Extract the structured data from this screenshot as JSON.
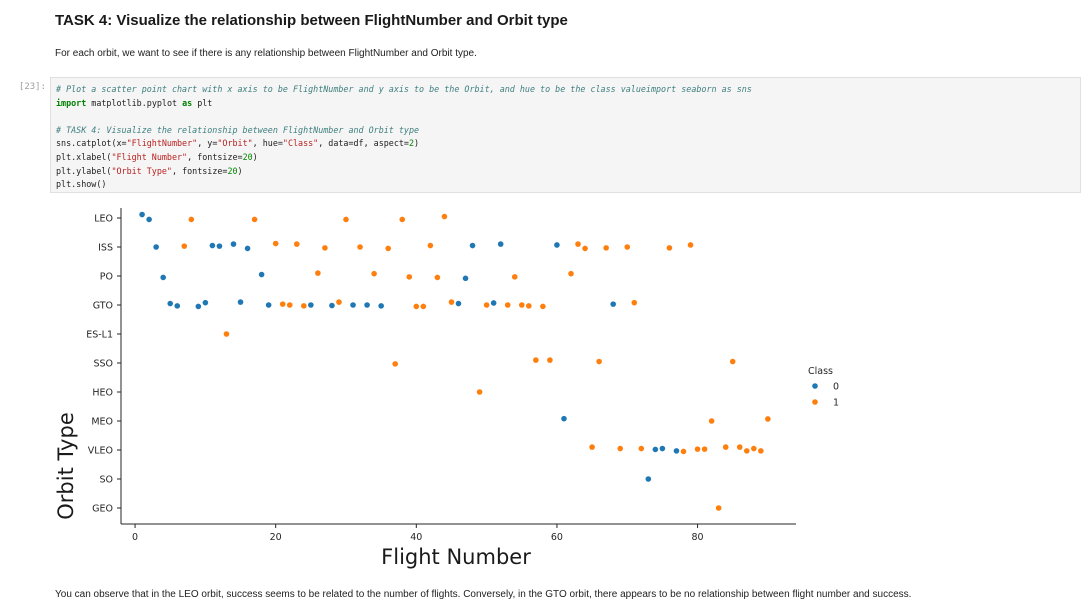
{
  "markdown": {
    "heading": "TASK 4: Visualize the relationship between FlightNumber and Orbit type",
    "paragraph": "For each orbit, we want to see if there is any relationship between FlightNumber and Orbit type.",
    "conclusion": "You can observe that in the LEO orbit, success seems to be related to the number of flights. Conversely, in the GTO orbit, there appears to be no relationship between flight number and success."
  },
  "code_cell": {
    "prompt": "[23]:",
    "lines": [
      {
        "parts": [
          {
            "t": "comment",
            "v": "# Plot a scatter point chart with x axis to be FlightNumber and y axis to be the Orbit, and hue to be the class valueimport seaborn as sns"
          }
        ]
      },
      {
        "parts": [
          {
            "t": "kw",
            "v": "import"
          },
          {
            "t": "plain",
            "v": " matplotlib.pyplot "
          },
          {
            "t": "kw",
            "v": "as"
          },
          {
            "t": "plain",
            "v": " plt"
          }
        ]
      },
      {
        "parts": []
      },
      {
        "parts": [
          {
            "t": "comment",
            "v": "# TASK 4: Visualize the relationship between FlightNumber and Orbit type"
          }
        ]
      },
      {
        "parts": [
          {
            "t": "plain",
            "v": "sns.catplot(x="
          },
          {
            "t": "str",
            "v": "\"FlightNumber\""
          },
          {
            "t": "plain",
            "v": ", y="
          },
          {
            "t": "str",
            "v": "\"Orbit\""
          },
          {
            "t": "plain",
            "v": ", hue="
          },
          {
            "t": "str",
            "v": "\"Class\""
          },
          {
            "t": "plain",
            "v": ", data=df, aspect="
          },
          {
            "t": "num",
            "v": "2"
          },
          {
            "t": "plain",
            "v": ")"
          }
        ]
      },
      {
        "parts": [
          {
            "t": "plain",
            "v": "plt.xlabel("
          },
          {
            "t": "str",
            "v": "\"Flight Number\""
          },
          {
            "t": "plain",
            "v": ", fontsize="
          },
          {
            "t": "num",
            "v": "20"
          },
          {
            "t": "plain",
            "v": ")"
          }
        ]
      },
      {
        "parts": [
          {
            "t": "plain",
            "v": "plt.ylabel("
          },
          {
            "t": "str",
            "v": "\"Orbit Type\""
          },
          {
            "t": "plain",
            "v": ", fontsize="
          },
          {
            "t": "num",
            "v": "20"
          },
          {
            "t": "plain",
            "v": ")"
          }
        ]
      },
      {
        "parts": [
          {
            "t": "plain",
            "v": "plt.show()"
          }
        ]
      }
    ]
  },
  "chart_data": {
    "type": "scatter",
    "title": "",
    "xlabel": "Flight Number",
    "ylabel": "Orbit Type",
    "xlim": [
      -2,
      94
    ],
    "xticks": [
      0,
      20,
      40,
      60,
      80
    ],
    "categories": [
      "LEO",
      "ISS",
      "PO",
      "GTO",
      "ES-L1",
      "SSO",
      "HEO",
      "MEO",
      "VLEO",
      "SO",
      "GEO"
    ],
    "legend": {
      "title": "Class",
      "position": "right"
    },
    "colors": {
      "0": "#1f77b4",
      "1": "#ff7f0e"
    },
    "series": [
      {
        "name": "0",
        "points": [
          [
            1,
            "LEO",
            -0.12
          ],
          [
            2,
            "LEO",
            0.05
          ],
          [
            3,
            "ISS",
            0
          ],
          [
            4,
            "PO",
            0.05
          ],
          [
            5,
            "GTO",
            -0.05
          ],
          [
            6,
            "GTO",
            0.03
          ],
          [
            9,
            "GTO",
            0.05
          ],
          [
            10,
            "GTO",
            -0.08
          ],
          [
            11,
            "ISS",
            -0.05
          ],
          [
            12,
            "ISS",
            -0.03
          ],
          [
            14,
            "ISS",
            -0.1
          ],
          [
            15,
            "GTO",
            -0.1
          ],
          [
            16,
            "ISS",
            0.05
          ],
          [
            18,
            "PO",
            -0.05
          ],
          [
            19,
            "GTO",
            0
          ],
          [
            25,
            "GTO",
            0
          ],
          [
            28,
            "GTO",
            0.02
          ],
          [
            31,
            "GTO",
            0
          ],
          [
            33,
            "GTO",
            0
          ],
          [
            35,
            "GTO",
            0.03
          ],
          [
            46,
            "GTO",
            -0.05
          ],
          [
            47,
            "PO",
            0.08
          ],
          [
            48,
            "ISS",
            -0.05
          ],
          [
            51,
            "GTO",
            -0.07
          ],
          [
            52,
            "ISS",
            -0.1
          ],
          [
            60,
            "ISS",
            -0.07
          ],
          [
            61,
            "MEO",
            -0.08
          ],
          [
            68,
            "GTO",
            -0.03
          ],
          [
            73,
            "SO",
            0
          ],
          [
            74,
            "VLEO",
            -0.02
          ],
          [
            75,
            "VLEO",
            -0.05
          ],
          [
            77,
            "VLEO",
            0.03
          ]
        ]
      },
      {
        "name": "1",
        "points": [
          [
            8,
            "LEO",
            0.05
          ],
          [
            7,
            "ISS",
            -0.03
          ],
          [
            13,
            "ES-L1",
            0
          ],
          [
            17,
            "LEO",
            0.05
          ],
          [
            20,
            "ISS",
            -0.12
          ],
          [
            21,
            "GTO",
            -0.03
          ],
          [
            22,
            "GTO",
            0
          ],
          [
            23,
            "ISS",
            -0.1
          ],
          [
            24,
            "GTO",
            0.03
          ],
          [
            26,
            "PO",
            -0.1
          ],
          [
            27,
            "ISS",
            0.03
          ],
          [
            29,
            "GTO",
            -0.1
          ],
          [
            30,
            "LEO",
            0.05
          ],
          [
            32,
            "ISS",
            0
          ],
          [
            34,
            "PO",
            -0.08
          ],
          [
            36,
            "ISS",
            0.05
          ],
          [
            37,
            "SSO",
            0.03
          ],
          [
            38,
            "LEO",
            0.05
          ],
          [
            39,
            "PO",
            0.03
          ],
          [
            40,
            "GTO",
            0.05
          ],
          [
            41,
            "GTO",
            0.05
          ],
          [
            42,
            "ISS",
            -0.05
          ],
          [
            43,
            "PO",
            0.05
          ],
          [
            44,
            "LEO",
            -0.05
          ],
          [
            45,
            "GTO",
            -0.1
          ],
          [
            49,
            "HEO",
            0
          ],
          [
            50,
            "GTO",
            0
          ],
          [
            53,
            "GTO",
            0
          ],
          [
            54,
            "PO",
            0.03
          ],
          [
            55,
            "GTO",
            0
          ],
          [
            56,
            "GTO",
            0.03
          ],
          [
            57,
            "SSO",
            -0.1
          ],
          [
            58,
            "GTO",
            0.05
          ],
          [
            59,
            "SSO",
            -0.1
          ],
          [
            62,
            "PO",
            -0.08
          ],
          [
            63,
            "ISS",
            -0.1
          ],
          [
            64,
            "ISS",
            0.05
          ],
          [
            65,
            "VLEO",
            -0.1
          ],
          [
            66,
            "SSO",
            -0.05
          ],
          [
            67,
            "ISS",
            0.03
          ],
          [
            69,
            "VLEO",
            -0.05
          ],
          [
            70,
            "ISS",
            0
          ],
          [
            71,
            "GTO",
            -0.08
          ],
          [
            72,
            "VLEO",
            -0.05
          ],
          [
            76,
            "ISS",
            0.03
          ],
          [
            78,
            "VLEO",
            0.05
          ],
          [
            79,
            "ISS",
            -0.07
          ],
          [
            80,
            "VLEO",
            -0.03
          ],
          [
            81,
            "VLEO",
            -0.03
          ],
          [
            82,
            "MEO",
            0
          ],
          [
            83,
            "GEO",
            0
          ],
          [
            84,
            "VLEO",
            -0.1
          ],
          [
            85,
            "SSO",
            -0.05
          ],
          [
            86,
            "VLEO",
            -0.1
          ],
          [
            87,
            "VLEO",
            0.03
          ],
          [
            88,
            "VLEO",
            -0.05
          ],
          [
            89,
            "VLEO",
            0.03
          ],
          [
            90,
            "MEO",
            -0.07
          ]
        ]
      }
    ]
  }
}
